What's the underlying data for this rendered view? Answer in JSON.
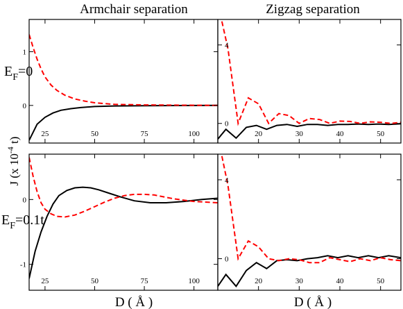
{
  "figure": {
    "col_titles": [
      "Armchair separation",
      "Zigzag separation"
    ],
    "row_labels": [
      {
        "main": "E",
        "sub": "F",
        "rest": "=0"
      },
      {
        "main": "E",
        "sub": "F",
        "rest": "=0.1t"
      }
    ],
    "ylabel": {
      "base": "J  (x 10",
      "exp": "-4",
      "tail": " t)"
    },
    "xlabels": [
      "D  ( Å )",
      "D ( Å )"
    ]
  },
  "chart_data": [
    {
      "type": "line",
      "panel": "top-left",
      "xlim": [
        17,
        112
      ],
      "ylim": [
        -0.7,
        1.6
      ],
      "xticks": [
        25,
        50,
        75,
        100
      ],
      "yticks": [
        0,
        1
      ],
      "series": [
        {
          "style": "solid",
          "color": "#000000",
          "x": [
            17,
            21,
            25,
            29,
            33,
            38,
            43,
            50,
            60,
            75,
            90,
            112
          ],
          "y": [
            -0.65,
            -0.35,
            -0.22,
            -0.14,
            -0.09,
            -0.06,
            -0.04,
            -0.02,
            -0.01,
            -0.005,
            -0.002,
            0.0
          ]
        },
        {
          "style": "dashed",
          "color": "#ff0000",
          "x": [
            17,
            19,
            21,
            23,
            25,
            28,
            31,
            35,
            40,
            45,
            50,
            60,
            75,
            90,
            112
          ],
          "y": [
            1.32,
            1.08,
            0.86,
            0.68,
            0.53,
            0.38,
            0.28,
            0.19,
            0.12,
            0.08,
            0.05,
            0.02,
            0.01,
            0.005,
            0.0
          ]
        }
      ]
    },
    {
      "type": "line",
      "panel": "top-right",
      "xlim": [
        10,
        55
      ],
      "ylim": [
        -1.0,
        5.3
      ],
      "xticks": [
        20,
        30,
        40,
        50
      ],
      "yticks": [
        0,
        4
      ],
      "series": [
        {
          "style": "solid",
          "color": "#000000",
          "x": [
            10,
            12,
            14.5,
            17,
            19.5,
            22,
            24.5,
            27,
            29.5,
            32,
            34.5,
            37,
            39.5,
            42,
            44.5,
            47,
            49.5,
            52,
            55
          ],
          "y": [
            -0.8,
            -0.3,
            -0.75,
            -0.2,
            -0.1,
            -0.3,
            -0.1,
            -0.05,
            -0.15,
            -0.05,
            -0.05,
            -0.1,
            -0.05,
            -0.05,
            -0.03,
            -0.05,
            -0.03,
            -0.05,
            -0.02
          ]
        },
        {
          "style": "dashed",
          "color": "#ff0000",
          "x": [
            11,
            12.5,
            15,
            17.5,
            20,
            22.5,
            25,
            27.5,
            30,
            32.5,
            35,
            37.5,
            40,
            42.5,
            45,
            47.5,
            50,
            52.5,
            55
          ],
          "y": [
            5.2,
            3.8,
            0.0,
            1.3,
            1.0,
            0.0,
            0.5,
            0.4,
            0.0,
            0.25,
            0.2,
            0.0,
            0.12,
            0.1,
            0.0,
            0.08,
            0.06,
            0.0,
            0.05
          ]
        }
      ]
    },
    {
      "type": "line",
      "panel": "bottom-left",
      "xlim": [
        17,
        112
      ],
      "ylim": [
        -1.4,
        0.7
      ],
      "xticks": [
        25,
        50,
        75,
        100
      ],
      "yticks": [
        -1,
        0
      ],
      "series": [
        {
          "style": "solid",
          "color": "#000000",
          "x": [
            17,
            20,
            23,
            26,
            29,
            32,
            36,
            40,
            44,
            48,
            52,
            57,
            63,
            70,
            78,
            86,
            95,
            104,
            112
          ],
          "y": [
            -1.22,
            -0.8,
            -0.5,
            -0.26,
            -0.07,
            0.06,
            0.14,
            0.18,
            0.19,
            0.18,
            0.15,
            0.1,
            0.04,
            -0.02,
            -0.05,
            -0.05,
            -0.03,
            0.0,
            0.02
          ]
        },
        {
          "style": "dashed",
          "color": "#ff0000",
          "x": [
            17,
            19,
            21,
            23,
            25,
            28,
            31,
            35,
            40,
            45,
            50,
            55,
            60,
            65,
            70,
            75,
            80,
            85,
            90,
            100,
            112
          ],
          "y": [
            0.65,
            0.36,
            0.12,
            -0.05,
            -0.15,
            -0.22,
            -0.26,
            -0.27,
            -0.24,
            -0.18,
            -0.11,
            -0.04,
            0.02,
            0.06,
            0.08,
            0.08,
            0.07,
            0.04,
            0.01,
            -0.03,
            -0.05
          ]
        }
      ]
    },
    {
      "type": "line",
      "panel": "bottom-right",
      "xlim": [
        10,
        55
      ],
      "ylim": [
        -1.6,
        5.3
      ],
      "xticks": [
        20,
        30,
        40,
        50
      ],
      "yticks": [
        0,
        4
      ],
      "series": [
        {
          "style": "solid",
          "color": "#000000",
          "x": [
            10,
            12,
            14.5,
            17,
            19.5,
            22,
            24.5,
            27,
            29.5,
            32,
            34.5,
            37,
            39.5,
            42,
            44.5,
            47,
            49.5,
            52,
            55
          ],
          "y": [
            -1.4,
            -0.8,
            -1.4,
            -0.6,
            -0.2,
            -0.5,
            -0.1,
            -0.05,
            -0.1,
            0.0,
            0.05,
            0.15,
            0.05,
            0.15,
            0.05,
            0.15,
            0.05,
            0.15,
            0.05
          ]
        },
        {
          "style": "dashed",
          "color": "#ff0000",
          "x": [
            11,
            12.5,
            15,
            17.5,
            20,
            22.5,
            25,
            27.5,
            30,
            32.5,
            35,
            37.5,
            40,
            42.5,
            45,
            47.5,
            50,
            52.5,
            55
          ],
          "y": [
            5.2,
            3.7,
            0.0,
            0.9,
            0.6,
            0.0,
            -0.1,
            0.0,
            -0.05,
            -0.2,
            -0.2,
            0.05,
            -0.05,
            -0.15,
            0.0,
            -0.1,
            0.05,
            -0.05,
            -0.1
          ]
        }
      ]
    }
  ]
}
